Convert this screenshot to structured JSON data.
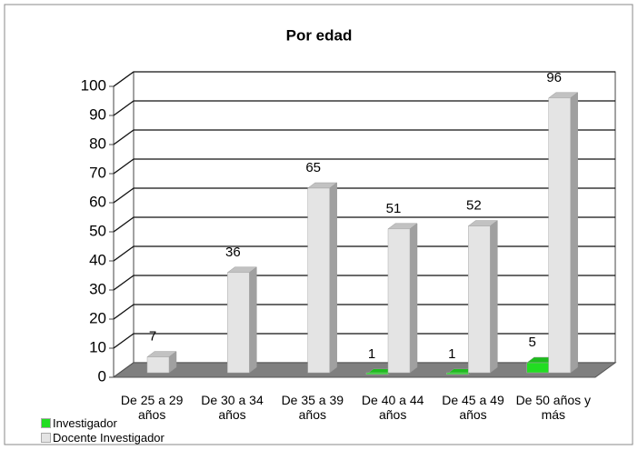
{
  "chart_data": {
    "type": "bar3d",
    "title": "Por edad",
    "categories": [
      "De 25 a 29 años",
      "De 30 a 34 años",
      "De 35 a 39 años",
      "De 40 a 44 años",
      "De 45 a 49 años",
      "De 50 años y más"
    ],
    "series": [
      {
        "name": "Investigador",
        "color": "#22dd22",
        "values": [
          null,
          null,
          null,
          1,
          1,
          5
        ]
      },
      {
        "name": "Docente Investigador",
        "color": "#e4e4e4",
        "values": [
          7,
          36,
          65,
          51,
          52,
          96
        ]
      }
    ],
    "ylim": [
      0,
      100
    ],
    "yticks": [
      0,
      10,
      20,
      30,
      40,
      50,
      60,
      70,
      80,
      90,
      100
    ],
    "grid": true,
    "legend": "bottom-left"
  }
}
